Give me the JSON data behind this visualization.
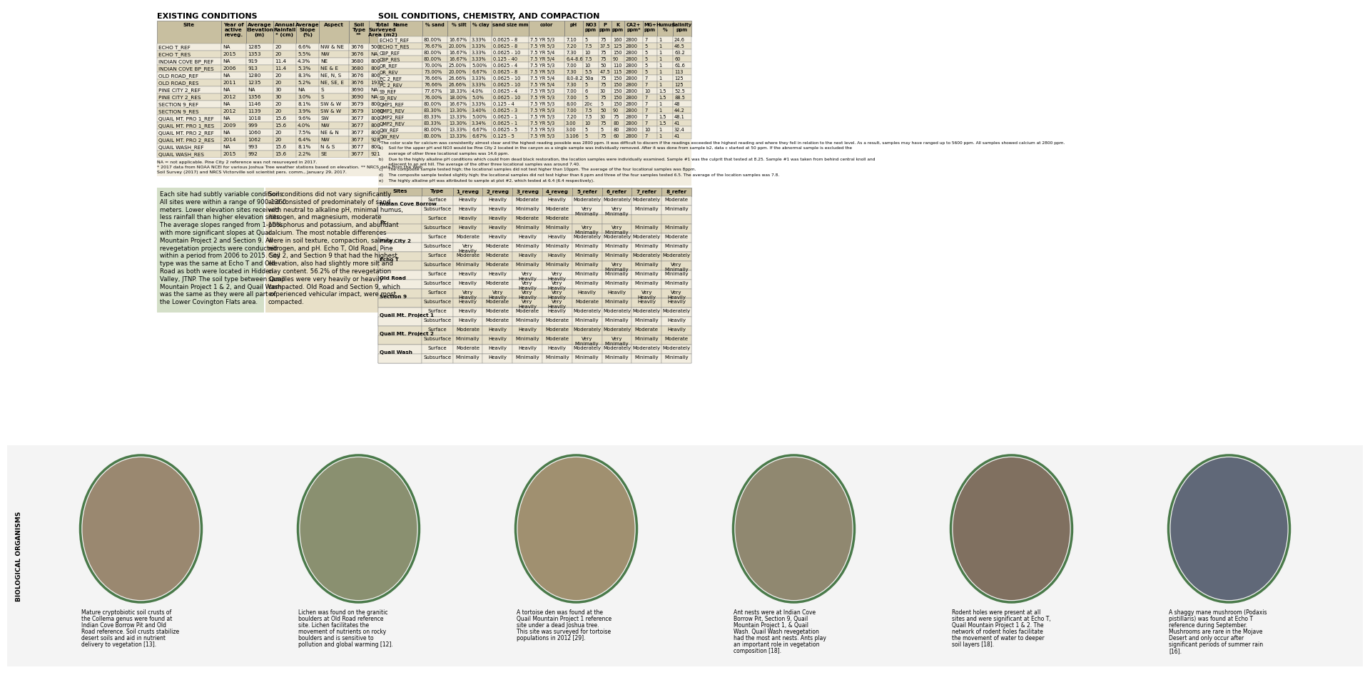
{
  "title_left": "EXISTING CONDITIONS",
  "title_right": "SOIL CONDITIONS, CHEMISTRY, AND COMPACTION",
  "bg_color": "#ffffff",
  "table_header_bg": "#c8bfa0",
  "table_row_bg1": "#f2ede0",
  "table_row_bg2": "#e6dfc8",
  "text_block_green": "#d4dfc8",
  "text_block_tan": "#e8e0c8",
  "footnote_bg": "#f2ede0",
  "bio_bg": "#f0f0f0",
  "table1_headers": [
    "Site",
    "Year of\nactive\nreveg.",
    "Average\nElevation\n(m)",
    "Annual\nRainfall\n* (cm)",
    "Average\nSlope\n(%)",
    "Aspect",
    "Soil\nType\n**",
    "Total\nSurveyed\nArea (m2)"
  ],
  "table1_col_widths": [
    90,
    35,
    38,
    32,
    32,
    42,
    28,
    38
  ],
  "table1_data": [
    [
      "ECHO T_REF",
      "NA",
      "1285",
      "20",
      "6.6%",
      "NW & NE",
      "3676",
      "500"
    ],
    [
      "ECHO T_RES",
      "2015",
      "1353",
      "20",
      "5.5%",
      "NW",
      "3676",
      "NA"
    ],
    [
      "INDIAN COVE BP_REF",
      "NA",
      "919",
      "11.4",
      "4.3%",
      "NE",
      "3680",
      "800"
    ],
    [
      "INDIAN COVE BP_RES",
      "2006",
      "913",
      "11.4",
      "5.3%",
      "NE & E",
      "3680",
      "800"
    ],
    [
      "OLD ROAD_REF",
      "NA",
      "1280",
      "20",
      "8.3%",
      "NE, N, S",
      "3676",
      "800"
    ],
    [
      "OLD ROAD_RES",
      "2011",
      "1235",
      "20",
      "5.2%",
      "NE, SE, E",
      "3676",
      "1935"
    ],
    [
      "PINE CITY 2_REF",
      "NA",
      "NA",
      "30",
      "NA",
      "S",
      "3690",
      "NA"
    ],
    [
      "PINE CITY 2_RES",
      "2012",
      "1356",
      "30",
      "3.0%",
      "S",
      "3690",
      "NA"
    ],
    [
      "SECTION 9_REF",
      "NA",
      "1146",
      "20",
      "8.1%",
      "SW & W",
      "3679",
      "800"
    ],
    [
      "SECTION 9_RES",
      "2012",
      "1139",
      "20",
      "3.9%",
      "SW & W",
      "3679",
      "1060"
    ],
    [
      "QUAIL MT. PRO 1_REF",
      "NA",
      "1018",
      "15.6",
      "9.6%",
      "SW",
      "3677",
      "800"
    ],
    [
      "QUAIL MT. PRO 1_RES",
      "2009",
      "999",
      "15.6",
      "4.0%",
      "NW",
      "3677",
      "800"
    ],
    [
      "QUAIL MT. PRO 2_REF",
      "NA",
      "1060",
      "20",
      "7.5%",
      "NE & N",
      "3677",
      "800"
    ],
    [
      "QUAIL MT. PRO 2_RES",
      "2014",
      "1062",
      "20",
      "6.4%",
      "NW",
      "3677",
      "928"
    ],
    [
      "QUAIL WASH_REF",
      "NA",
      "993",
      "15.6",
      "8.1%",
      "N & S",
      "3677",
      "800"
    ],
    [
      "QUAIL WASH_RES",
      "2015",
      "992",
      "15.6",
      "2.2%",
      "SE",
      "3677",
      "921"
    ]
  ],
  "footnotes_left": [
    "NA = not applicable. Pine City 2 reference was not resurveyed in 2017.",
    "* 2017 data from NOAA NCEI for various Joshua Tree weather stations based on elevation. ** NRCS data from the Web",
    "Soil Survey (2017) and NRCS Victorville soil scientist pers. comm., January 29, 2017."
  ],
  "table2_headers": [
    "Name",
    "% sand",
    "% silt",
    "% clay",
    "sand size mm",
    "color",
    "pH",
    "NO3\nppm",
    "P\nppm",
    "K\nppm",
    "CA2+\nppm*",
    "MG+\nppm",
    "Humus\n%",
    "Salinity\nppm"
  ],
  "table2_col_widths": [
    62,
    35,
    32,
    30,
    52,
    50,
    26,
    22,
    18,
    18,
    26,
    20,
    22,
    26
  ],
  "table2_data": [
    [
      "ECHO T_REF",
      "80.00%",
      "16.67%",
      "3.33%",
      "0.0625 - 8",
      "7.5 YR 5/3",
      "7.10",
      "5",
      "75",
      "160",
      "2800",
      "7",
      "1",
      "24.6"
    ],
    [
      "ECHO T_RES",
      "76.67%",
      "20.00%",
      "3.33%",
      "0.0625 - 8",
      "7.5 YR 5/3",
      "7.20",
      "7.5",
      "37.5",
      "125",
      "2800",
      "5",
      "1",
      "46.5"
    ],
    [
      "CBP_REF",
      "80.00%",
      "16.67%",
      "3.33%",
      "0.0625 - 10",
      "7.5 YR 5/4",
      "7.30",
      "10",
      "75",
      "150",
      "2800",
      "5",
      "1",
      "63.2"
    ],
    [
      "CBP_RES",
      "80.00%",
      "16.67%",
      "3.33%",
      "0.125 - 40",
      "7.5 YR 5/4",
      "6.4-8.6",
      "7.5",
      "75",
      "90",
      "2800",
      "5",
      "1",
      "60"
    ],
    [
      "OR_REF",
      "70.00%",
      "25.00%",
      "5.00%",
      "0.0625 - 4",
      "7.5 YR 5/3",
      "7.00",
      "10",
      "50",
      "110",
      "2800",
      "5",
      "1",
      "61.6"
    ],
    [
      "OR_REV",
      "73.00%",
      "20.00%",
      "6.67%",
      "0.0625 - 8",
      "7.5 YR 5/3",
      "7.30",
      "5.5",
      "47.5",
      "115",
      "2800",
      "5",
      "1",
      "113"
    ],
    [
      "PC 2_REF",
      "76.66%",
      "26.66%",
      "3.33%",
      "0.0625 - 10",
      "7.5 YR 5/4",
      "8.0-8.2",
      "50a",
      "75",
      "150",
      "2800",
      "7",
      "1",
      "125"
    ],
    [
      "PC 2_REV",
      "76.66%",
      "26.66%",
      "3.33%",
      "0.0625 - 10",
      "7.5 YR 5/4",
      "7.30",
      "5",
      "75",
      "150",
      "2800",
      "7",
      "1",
      "125"
    ],
    [
      "S9_REF",
      "77.67%",
      "18.33%",
      "4.0%",
      "0.0625 - 4",
      "7.5 YR 5/3",
      "7.00",
      "6",
      "30",
      "150",
      "2800",
      "10",
      "1.5",
      "52.5"
    ],
    [
      "S9_REV",
      "76.00%",
      "18.00%",
      "5.0%",
      "0.0625 - 10",
      "7.5 YR 5/3",
      "7.00",
      "5",
      "75",
      "150",
      "2800",
      "7",
      "1.5",
      "88.5"
    ],
    [
      "QMP1_REF",
      "80.00%",
      "16.67%",
      "3.33%",
      "0.125 - 4",
      "7.5 YR 5/3",
      "8.00",
      "20c",
      "5",
      "150",
      "2800",
      "7",
      "1",
      "48"
    ],
    [
      "QMP1_REV",
      "83.30%",
      "13.30%",
      "3.40%",
      "0.0625 - 3",
      "7.5 YR 5/3",
      "7.00",
      "7.5",
      "50",
      "90",
      "2800",
      "7",
      "1",
      "44.2"
    ],
    [
      "QMP2_REF",
      "83.33%",
      "13.33%",
      "5.00%",
      "0.0625 - 1",
      "7.5 YR 5/3",
      "7.20",
      "7.5",
      "30",
      "75",
      "2800",
      "7",
      "1.5",
      "48.1"
    ],
    [
      "QMP2_REV",
      "83.33%",
      "13.30%",
      "3.34%",
      "0.0625 - 1",
      "7.5 YR 5/3",
      "3.00",
      "10",
      "75",
      "80",
      "2800",
      "7",
      "1.5",
      "41"
    ],
    [
      "QW_REF",
      "80.00%",
      "13.33%",
      "6.67%",
      "0.0625 - 5",
      "7.5 YR 5/3",
      "3.00",
      "5",
      "5",
      "80",
      "2800",
      "10",
      "1",
      "32.4"
    ],
    [
      "QW_REV",
      "80.00%",
      "13.33%",
      "6.67%",
      "0.125 - 5",
      "7.5 YR 5/3",
      "3.106",
      "5",
      "75",
      "60",
      "2800",
      "7",
      "1",
      "41"
    ]
  ],
  "footnotes_right": [
    "*The color scale for calcium was consistently almost clear and the highest reading possible was 2800 ppm. It was difficult to discern if the readings exceeded the highest reading and where they fell in relation to the next level. As a result, samples may have ranged up to 5600 ppm. All samples showed calcium at 2800 ppm.",
    "a)    Soil for the upper pH and NO3 would be Pine City 2 located in the canyon as a single sample was individually removed. After it was done from sample b2, data c started at 50 ppm. If the abnormal sample is excluded the",
    "       average of other three locational samples was 14.6 ppm.",
    "b)    Due to the highly alkaline pH conditions which could from dead black restoration, the location samples were individually examined. Sample #1 was the culprit that tested at 8.25. Sample #1 was taken from behind central knoll and",
    "       adjacent to an ant hill. The average of the other three locational samples was around 7.40.",
    "c)    The composite sample tested high; the locational samples did not test higher than 10ppm. The average of the four locational samples was 8ppm.",
    "d)    The composite sample tested slightly high; the locational samples did not test higher than 6 ppm and three of the four samples tested 6.5. The average of the location samples was 7.8.",
    "e)    The highly alkaline pH was attributed to sample at plot #2, which tested at 6.4 (6.4 respectively)."
  ],
  "compaction_headers": [
    "Sites",
    "Type",
    "1_reveg",
    "2_reveg",
    "3_reveg",
    "4_reveg",
    "5_refer",
    "6_refer",
    "7_refer",
    "8_refer"
  ],
  "compaction_col_widths": [
    70,
    50,
    48,
    48,
    48,
    48,
    48,
    48,
    48,
    48
  ],
  "compaction_data": [
    [
      "Indian Cove Borrow",
      "Surface",
      "Heavily",
      "Heavily",
      "Moderate",
      "Heavily",
      "Moderately",
      "Moderately",
      "Moderately",
      "Moderate"
    ],
    [
      "Indian Cove Borrow",
      "Subsurface",
      "Heavily",
      "Heavily",
      "Minimally",
      "Moderate",
      "Very\nMinimally",
      "Very\nMinimally",
      "Minimally",
      "Minimally"
    ],
    [
      "Pc",
      "Surface",
      "Heavily",
      "Heavily",
      "Moderate",
      "Moderate",
      "",
      "",
      "",
      ""
    ],
    [
      "Pc",
      "Subsurface",
      "Heavily",
      "Heavily",
      "Minimally",
      "Minimally",
      "Very\nMinimally",
      "Very\nMinimally",
      "Minimally",
      "Minimally"
    ],
    [
      "Pine City 2",
      "Surface",
      "Moderate",
      "Heavily",
      "Heavily",
      "Heavily",
      "Moderately",
      "Moderately",
      "Moderately",
      "Moderate"
    ],
    [
      "Pine City 2",
      "Subsurface",
      "Very\nHeavily",
      "Moderate",
      "Minimally",
      "Minimally",
      "Minimally",
      "Minimally",
      "Minimally",
      "Minimally"
    ],
    [
      "Echo T",
      "Surface",
      "Moderate",
      "Moderate",
      "Heavily",
      "Heavily",
      "Minimally",
      "Minimally",
      "Moderately",
      "Moderately"
    ],
    [
      "Echo T",
      "Subsurface",
      "Minimally",
      "Moderate",
      "Minimally",
      "Minimally",
      "Minimally",
      "Very\nMinimally",
      "Minimally",
      "Very\nMinimally"
    ],
    [
      "Old Road",
      "Surface",
      "Heavily",
      "Heavily",
      "Very\nHeavily",
      "Very\nHeavily",
      "Minimally",
      "Minimally",
      "Minimally",
      "Minimally"
    ],
    [
      "Old Road",
      "Subsurface",
      "Heavily",
      "Moderate",
      "Very\nHeavily",
      "Very\nHeavily",
      "Minimally",
      "Minimally",
      "Minimally",
      "Minimally"
    ],
    [
      "Section 9",
      "Surface",
      "Very\nHeavily",
      "Very\nHeavily",
      "Very\nHeavily",
      "Very\nHeavily",
      "Heavily",
      "Heavily",
      "Very\nHeavily",
      "Very\nHeavily"
    ],
    [
      "Section 9",
      "Subsurface",
      "Heavily",
      "Moderate",
      "Very\nHeavily",
      "Very\nHeavily",
      "Moderate",
      "Minimally",
      "Heavily",
      "Heavily"
    ],
    [
      "Quail Mt. Project 1",
      "Surface",
      "Heavily",
      "Moderate",
      "Moderate",
      "Heavily",
      "Moderately",
      "Moderately",
      "Moderately",
      "Moderately"
    ],
    [
      "Quail Mt. Project 1",
      "Subsurface",
      "Heavily",
      "Moderate",
      "Minimally",
      "Moderate",
      "Minimally",
      "Minimally",
      "Minimally",
      "Heavily"
    ],
    [
      "Quail Mt. Project 2",
      "Surface",
      "Moderate",
      "Heavily",
      "Heavily",
      "Moderate",
      "Moderately",
      "Moderately",
      "Moderate",
      "Heavily"
    ],
    [
      "Quail Mt. Project 2",
      "Subsurface",
      "Minimally",
      "Heavily",
      "Minimally",
      "Moderate",
      "Very\nMinimally",
      "Very\nMinimally",
      "Minimally",
      "Moderate"
    ],
    [
      "Quail Wash",
      "Surface",
      "Moderate",
      "Heavily",
      "Heavily",
      "Heavily",
      "Moderately",
      "Moderately",
      "Moderately",
      "Moderately"
    ],
    [
      "Quail Wash",
      "Subsurface",
      "Minimally",
      "Heavily",
      "Minimally",
      "Minimally",
      "Minimally",
      "Minimally",
      "Minimally",
      "Minimally"
    ]
  ],
  "left_text_lines": [
    "Each site had subtly variable conditions.",
    "All sites were within a range of 900-1360",
    "meters. Lower elevation sites received",
    "less rainfall than higher elevation sites.",
    "The average slopes ranged from 1-10%",
    "with more significant slopes at Quail",
    "Mountain Project 2 and Section 9. All",
    "revegetation projects were conducted",
    "within a period from 2006 to 2015. Soil",
    "type was the same at Echo T and Old",
    "Road as both were located in Hidden",
    "Valley, JTNP. The soil type between Quail",
    "Mountain Project 1 & 2, and Quail Wash",
    "was the same as they were all part of",
    "the Lower Covington Flats area."
  ],
  "right_text_lines": [
    "Soil conditions did not vary significantly",
    "and consisted of predominately of sand",
    "with neutral to alkaline pH, minimal humus,",
    "nitrogen, and magnesium, moderate",
    "phosphorus and potassium, and abundant",
    "calcium. The most notable differences",
    "were in soil texture, compaction, salinity,",
    "nitrogen, and pH. Echo T, Old Road, Pine",
    "City 2, and Section 9 that had the highest",
    "elevation, also had slightly more silt and",
    "clay content. 56.2% of the revegetation",
    "samples were very heavily or heavily",
    "compacted. Old Road and Section 9, which",
    "experienced vehicular impact, were most",
    "compacted."
  ],
  "bio_captions": [
    "Mature cryptobiotic soil crusts of\nthe Collema genus were found at\nIndian Cove Borrow Pit and Old\nRoad reference. Soil crusts stabilize\ndesert soils and aid in nutrient\ndelivery to vegetation [13].",
    "Lichen was found on the granitic\nboulders at Old Road reference\nsite. Lichen facilitates the\nmovement of nutrients on rocky\nboulders and is sensitive to\npollution and global warming [12].",
    "A tortoise den was found at the\nQuail Mountain Project 1 reference\nsite under a dead Joshua tree.\nThis site was surveyed for tortoise\npopulations in 2012 [29].",
    "Ant nests were at Indian Cove\nBorrow Pit, Section 9, Quail\nMountain Project 1, & Quail\nWash. Quail Wash revegetation\nhad the most ant nests. Ants play\nan important role in vegetation\ncomposition [18].",
    "Rodent holes were present at all\nsites and were significant at Echo T,\nQuail Mountain Project 1 & 2. The\nnetwork of rodent holes facilitate\nthe movement of water to deeper\nsoil layers [18].",
    "A shaggy mane mushroom (Podaxis\npistillaris) was found at Echo T\nreference during September.\nMushrooms are rare in the Mojave\nDesert and only occur after\nsignificant periods of summer rain\n[16]."
  ],
  "oval_colors": [
    "#8a7a60",
    "#7a8a6a",
    "#9a8060",
    "#8a9060",
    "#706050",
    "#505870"
  ]
}
